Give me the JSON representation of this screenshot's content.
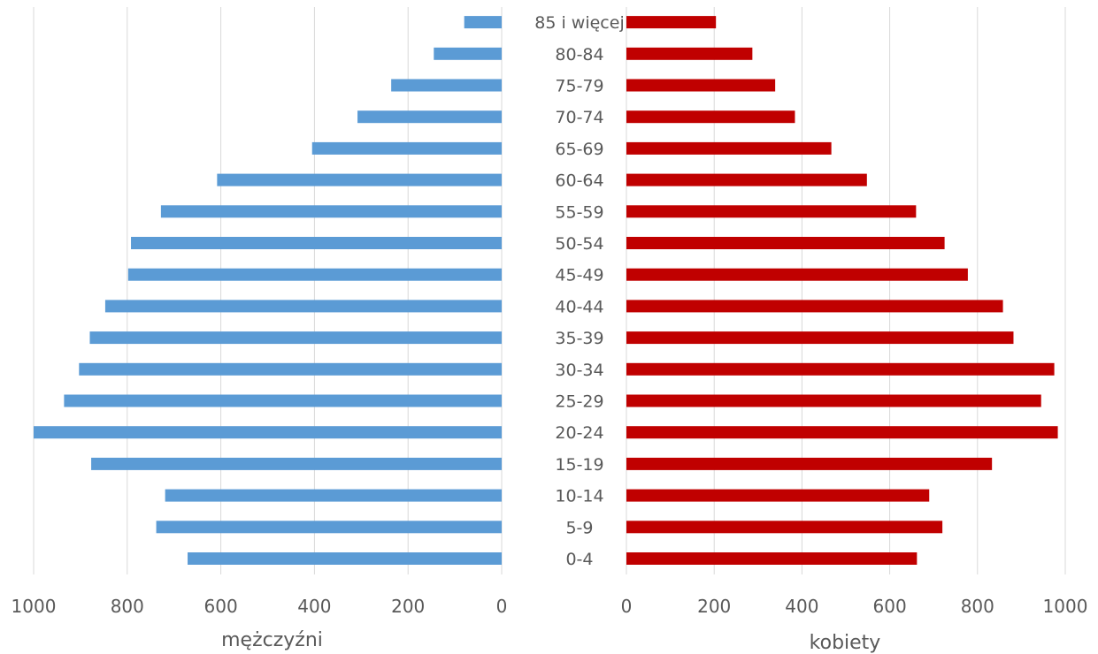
{
  "chart_data": {
    "type": "bar",
    "orientation": "horizontal",
    "layout": "population-pyramid",
    "categories": [
      "0-4",
      "5-9",
      "10-14",
      "15-19",
      "20-24",
      "25-29",
      "30-34",
      "35-39",
      "40-44",
      "45-49",
      "50-54",
      "55-59",
      "60-64",
      "65-69",
      "70-74",
      "75-79",
      "80-84",
      "85 i więcej"
    ],
    "series": [
      {
        "name": "mężczyźni",
        "side": "left",
        "color": "#5b9bd5",
        "values": [
          671,
          738,
          719,
          877,
          1000,
          935,
          903,
          880,
          847,
          798,
          792,
          728,
          608,
          405,
          308,
          236,
          145,
          80
        ]
      },
      {
        "name": "kobiety",
        "side": "right",
        "color": "#c00000",
        "values": [
          662,
          720,
          690,
          833,
          983,
          945,
          975,
          882,
          858,
          778,
          725,
          660,
          548,
          467,
          384,
          339,
          287,
          204
        ]
      }
    ],
    "left_axis": {
      "label": "mężczyźni",
      "range": [
        1000,
        0
      ],
      "ticks": [
        "1000",
        "800",
        "600",
        "400",
        "200",
        "0"
      ]
    },
    "right_axis": {
      "label": "kobiety",
      "range": [
        0,
        1000
      ],
      "ticks": [
        "0",
        "200",
        "400",
        "600",
        "800",
        "1000"
      ]
    },
    "grid": true,
    "legend": "none"
  }
}
